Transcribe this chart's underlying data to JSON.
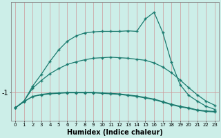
{
  "xlabel": "Humidex (Indice chaleur)",
  "x": [
    0,
    1,
    2,
    3,
    4,
    5,
    6,
    7,
    8,
    9,
    10,
    11,
    12,
    13,
    14,
    15,
    16,
    17,
    18,
    19,
    20,
    21,
    22,
    23
  ],
  "line1": [
    -1.3,
    -1.18,
    -1.08,
    -1.05,
    -1.03,
    -1.02,
    -1.01,
    -1.01,
    -1.01,
    -1.01,
    -1.02,
    -1.03,
    -1.04,
    -1.06,
    -1.08,
    -1.11,
    -1.14,
    -1.19,
    -1.24,
    -1.28,
    -1.31,
    -1.35,
    -1.37,
    -1.38
  ],
  "line2": [
    -1.3,
    -1.18,
    -1.08,
    -1.04,
    -1.02,
    -1.01,
    -1.0,
    -1.0,
    -1.0,
    -1.0,
    -1.01,
    -1.02,
    -1.03,
    -1.05,
    -1.07,
    -1.1,
    -1.13,
    -1.18,
    -1.23,
    -1.27,
    -1.3,
    -1.34,
    -1.36,
    -1.37
  ],
  "line3": [
    -1.3,
    -1.17,
    -0.92,
    -0.77,
    -0.64,
    -0.54,
    -0.46,
    -0.41,
    -0.37,
    -0.34,
    -0.33,
    -0.32,
    -0.33,
    -0.34,
    -0.36,
    -0.38,
    -0.43,
    -0.51,
    -0.62,
    -0.76,
    -0.91,
    -1.05,
    -1.17,
    -1.25
  ],
  "line4": [
    -1.3,
    -1.17,
    -0.88,
    -0.65,
    -0.4,
    -0.18,
    -0.01,
    0.09,
    0.15,
    0.17,
    0.18,
    0.18,
    0.18,
    0.19,
    0.18,
    0.42,
    0.55,
    0.16,
    -0.42,
    -0.85,
    -1.06,
    -1.17,
    -1.27,
    -1.33
  ],
  "line_color": "#1a7a6e",
  "bg_color": "#cceee8",
  "vgrid_color": "#cc9999",
  "hline_color": "#cc9999",
  "ylim": [
    -1.55,
    0.75
  ],
  "xlim": [
    -0.5,
    23.5
  ],
  "ytick_val": -1,
  "ytick_label": "-1"
}
